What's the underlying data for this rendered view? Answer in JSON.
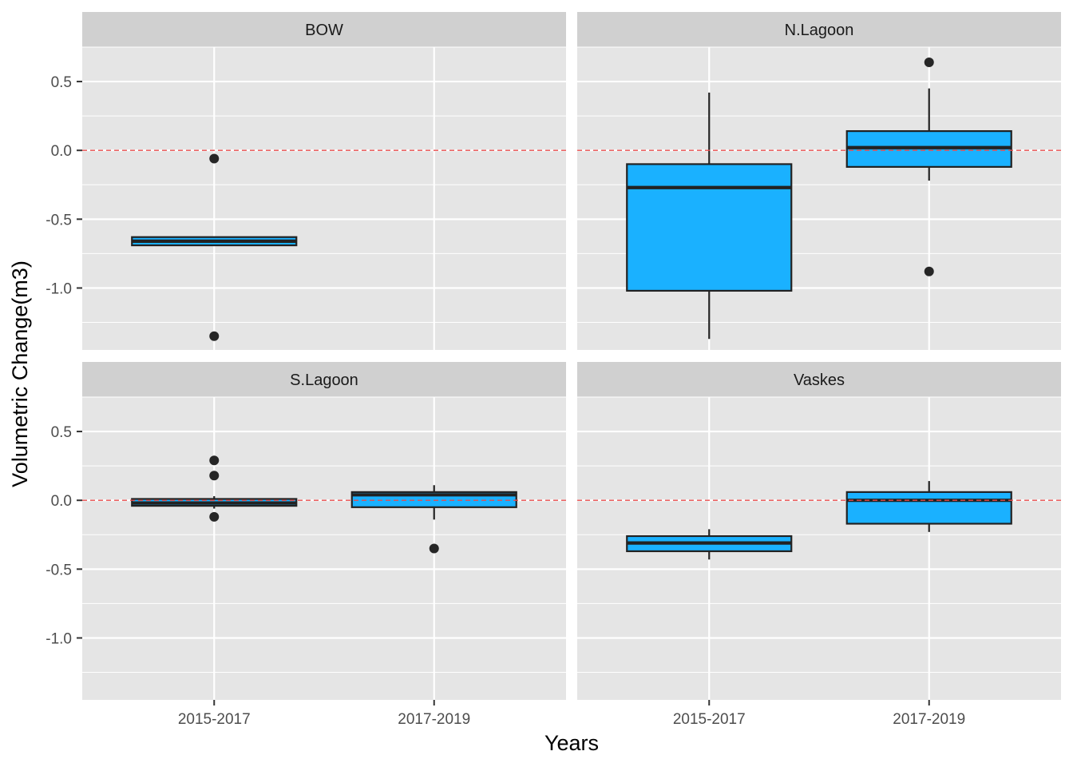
{
  "chart_data": {
    "type": "box",
    "xlabel": "Years",
    "ylabel": "Volumetric Change(m3)",
    "categories": [
      "2015-2017",
      "2017-2019"
    ],
    "ylim": [
      -1.45,
      0.75
    ],
    "yticks": [
      -1.0,
      -0.5,
      0.0,
      0.5
    ],
    "ytick_labels": [
      "-1.0",
      "-0.5",
      "0.0",
      "0.5"
    ],
    "reference_line": {
      "y": 0.0,
      "style": "dashed",
      "color": "#e84c4c"
    },
    "grid": true,
    "colors": {
      "box_fill": "#1ab1ff",
      "box_stroke": "#222222",
      "panel_bg": "#e5e5e5",
      "strip_bg": "#d0d0d0",
      "grid": "#ffffff"
    },
    "panels": [
      {
        "title": "BOW",
        "boxes": [
          {
            "category": "2015-2017",
            "min": -1.35,
            "q1": -0.69,
            "median": -0.66,
            "q3": -0.63,
            "max": -0.06,
            "whisker_low": -0.69,
            "whisker_high": -0.63,
            "outliers": [
              -0.06,
              -1.35
            ]
          }
        ]
      },
      {
        "title": "N.Lagoon",
        "boxes": [
          {
            "category": "2015-2017",
            "q1": -1.02,
            "median": -0.27,
            "q3": -0.1,
            "whisker_low": -1.37,
            "whisker_high": 0.42,
            "outliers": []
          },
          {
            "category": "2017-2019",
            "q1": -0.12,
            "median": 0.02,
            "q3": 0.14,
            "whisker_low": -0.22,
            "whisker_high": 0.45,
            "outliers": [
              0.64,
              -0.88
            ]
          }
        ]
      },
      {
        "title": "S.Lagoon",
        "boxes": [
          {
            "category": "2015-2017",
            "q1": -0.04,
            "median": -0.02,
            "q3": 0.01,
            "whisker_low": -0.06,
            "whisker_high": 0.03,
            "outliers": [
              0.29,
              0.18,
              -0.12
            ]
          },
          {
            "category": "2017-2019",
            "q1": -0.05,
            "median": 0.04,
            "q3": 0.06,
            "whisker_low": -0.14,
            "whisker_high": 0.11,
            "outliers": [
              -0.35
            ]
          }
        ]
      },
      {
        "title": "Vaskes",
        "boxes": [
          {
            "category": "2015-2017",
            "q1": -0.37,
            "median": -0.31,
            "q3": -0.26,
            "whisker_low": -0.43,
            "whisker_high": -0.21,
            "outliers": []
          },
          {
            "category": "2017-2019",
            "q1": -0.17,
            "median": 0.0,
            "q3": 0.06,
            "whisker_low": -0.23,
            "whisker_high": 0.14,
            "outliers": []
          }
        ]
      }
    ]
  }
}
